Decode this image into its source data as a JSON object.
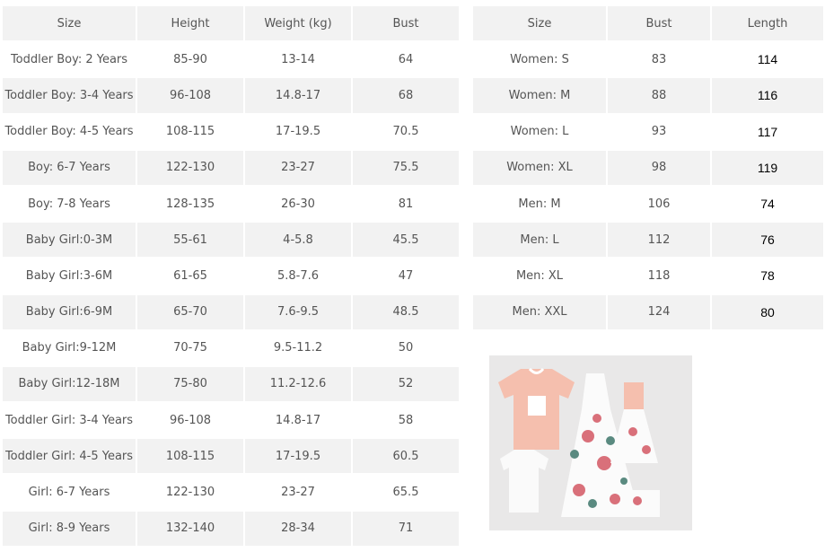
{
  "left_table": {
    "headers": [
      "Size",
      "Height",
      "Weight (kg)",
      "Bust"
    ],
    "rows": [
      [
        "Toddler Boy: 2 Years",
        "85-90",
        "13-14",
        "64"
      ],
      [
        "Toddler Boy: 3-4 Years",
        "96-108",
        "14.8-17",
        "68"
      ],
      [
        "Toddler Boy: 4-5 Years",
        "108-115",
        "17-19.5",
        "70.5"
      ],
      [
        "Boy: 6-7 Years",
        "122-130",
        "23-27",
        "75.5"
      ],
      [
        "Boy: 7-8 Years",
        "128-135",
        "26-30",
        "81"
      ],
      [
        "Baby Girl:0-3M",
        "55-61",
        "4-5.8",
        "45.5"
      ],
      [
        "Baby Girl:3-6M",
        "61-65",
        "5.8-7.6",
        "47"
      ],
      [
        "Baby Girl:6-9M",
        "65-70",
        "7.6-9.5",
        "48.5"
      ],
      [
        "Baby Girl:9-12M",
        "70-75",
        "9.5-11.2",
        "50"
      ],
      [
        "Baby Girl:12-18M",
        "75-80",
        "11.2-12.6",
        "52"
      ],
      [
        "Toddler Girl: 3-4 Years",
        "96-108",
        "14.8-17",
        "58"
      ],
      [
        "Toddler Girl: 4-5 Years",
        "108-115",
        "17-19.5",
        "60.5"
      ],
      [
        "Girl: 6-7 Years",
        "122-130",
        "23-27",
        "65.5"
      ],
      [
        "Girl: 8-9 Years",
        "132-140",
        "28-34",
        "71"
      ]
    ]
  },
  "right_table": {
    "headers": [
      "Size",
      "Bust",
      "Length"
    ],
    "rows": [
      [
        "Women: S",
        "83",
        "114"
      ],
      [
        "Women: M",
        "88",
        "116"
      ],
      [
        "Women: L",
        "93",
        "117"
      ],
      [
        "Women: XL",
        "98",
        "119"
      ],
      [
        "Men: M",
        "106",
        "74"
      ],
      [
        "Men: L",
        "112",
        "76"
      ],
      [
        "Men: XL",
        "118",
        "78"
      ],
      [
        "Men: XXL",
        "124",
        "80"
      ]
    ]
  }
}
